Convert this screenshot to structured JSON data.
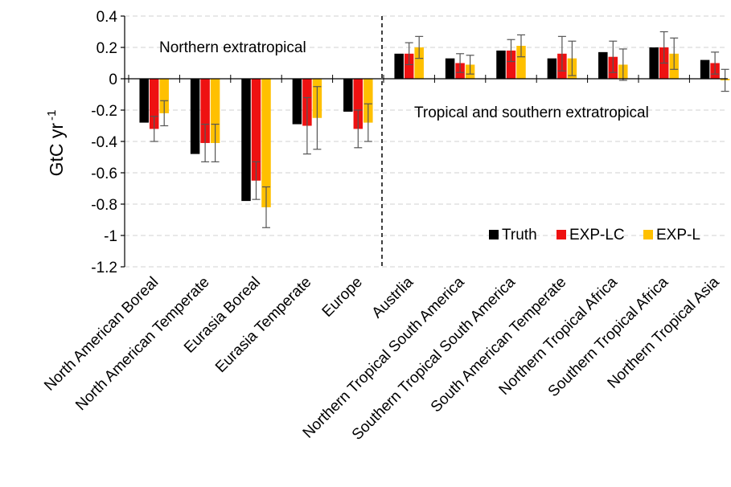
{
  "chart_data": {
    "type": "bar",
    "title": "",
    "xlabel": "",
    "ylabel": "GtC yr",
    "ylabel_superscript": "-1",
    "ylim": [
      -1.2,
      0.4
    ],
    "yticks": [
      0.4,
      0.2,
      0,
      -0.2,
      -0.4,
      -0.6,
      -0.8,
      -1,
      -1.2
    ],
    "ytick_labels": [
      "0.4",
      "0.2",
      "0",
      "-0.2",
      "-0.4",
      "-0.6",
      "-0.8",
      "-1",
      "-1.2"
    ],
    "grid": "horizontal-dashed",
    "legend_position": "bottom-right",
    "categories": [
      "North American Boreal",
      "North American Temperate",
      "Eurasia Boreal",
      "Eurasia Temperate",
      "Europe",
      "Austrlia",
      "Northern Tropical South America",
      "Southern Tropical South America",
      "South American Temperate",
      "Northern Tropical Africa",
      "Southern Tropical Africa",
      "Northern Tropical Asia"
    ],
    "series": [
      {
        "name": "Truth",
        "color": "#000000",
        "values": [
          -0.28,
          -0.48,
          -0.78,
          -0.29,
          -0.21,
          0.16,
          0.13,
          0.18,
          0.13,
          0.17,
          0.2,
          0.12
        ],
        "errors": [
          null,
          null,
          null,
          null,
          null,
          null,
          null,
          null,
          null,
          null,
          null,
          null
        ]
      },
      {
        "name": "EXP-LC",
        "color": "#ee1111",
        "values": [
          -0.32,
          -0.41,
          -0.65,
          -0.3,
          -0.32,
          0.16,
          0.1,
          0.18,
          0.16,
          0.14,
          0.2,
          0.1
        ],
        "errors": [
          0.08,
          0.12,
          0.12,
          0.18,
          0.12,
          0.07,
          0.06,
          0.07,
          0.11,
          0.1,
          0.1,
          0.07
        ]
      },
      {
        "name": "EXP-L",
        "color": "#ffc000",
        "values": [
          -0.22,
          -0.41,
          -0.82,
          -0.25,
          -0.28,
          0.2,
          0.09,
          0.21,
          0.13,
          0.09,
          0.16,
          -0.01
        ],
        "errors": [
          0.08,
          0.12,
          0.13,
          0.2,
          0.12,
          0.07,
          0.06,
          0.07,
          0.11,
          0.1,
          0.1,
          0.07
        ]
      }
    ],
    "annotations": [
      {
        "text": "Northern extratropical"
      },
      {
        "text": "Tropical and southern extratropical"
      }
    ],
    "divider_after_category": "Europe"
  }
}
